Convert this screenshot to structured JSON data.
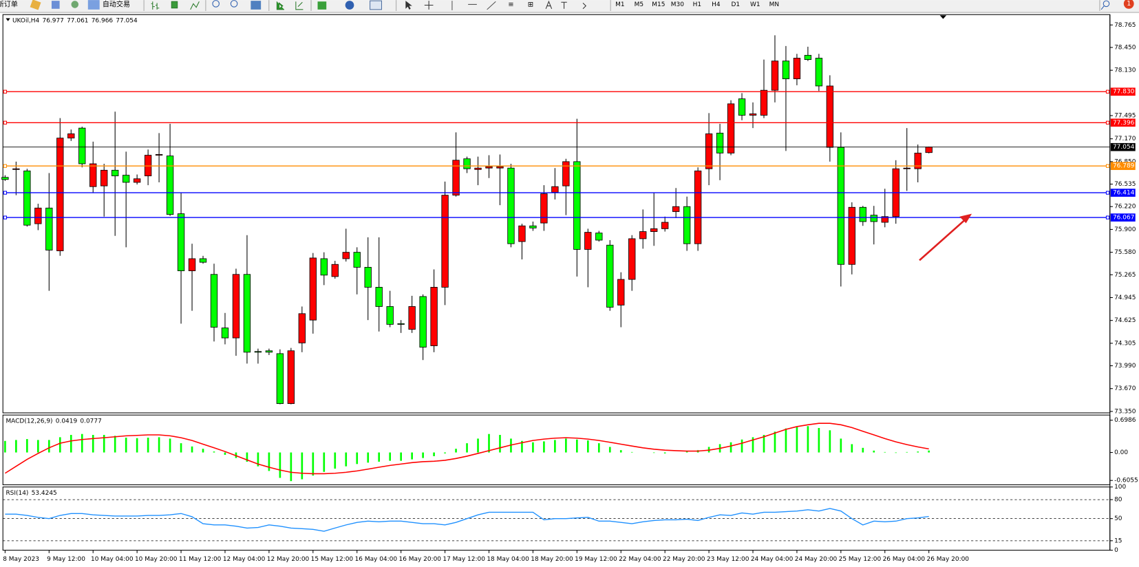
{
  "toolbar": {
    "new_order": "新订单",
    "auto_trading": "自动交易",
    "timeframes": [
      "M1",
      "M5",
      "M15",
      "M30",
      "H1",
      "H4",
      "D1",
      "W1",
      "MN"
    ],
    "notification_count": 1
  },
  "chart_data": [
    {
      "type": "candlestick",
      "title": "UKOil,H4",
      "up_color": "#ff0000",
      "down_color": "#00ff00",
      "categories": [
        "8 May 2023",
        null,
        null,
        null,
        "9 May 12:00",
        null,
        null,
        null,
        "10 May 04:00",
        null,
        null,
        null,
        "10 May 20:00",
        null,
        null,
        null,
        "11 May 12:00",
        null,
        null,
        null,
        "12 May 04:00",
        null,
        null,
        null,
        "12 May 20:00",
        null,
        null,
        null,
        "15 May 12:00",
        null,
        null,
        null,
        "16 May 04:00",
        null,
        null,
        null,
        "16 May 20:00",
        null,
        null,
        null,
        "17 May 12:00",
        null,
        null,
        null,
        "18 May 04:00",
        null,
        null,
        null,
        "18 May 20:00",
        null,
        null,
        null,
        "19 May 12:00",
        null,
        null,
        null,
        "22 May 04:00",
        null,
        null,
        null,
        "22 May 20:00",
        null,
        null,
        null,
        "23 May 12:00",
        null,
        null,
        null,
        "24 May 04:00",
        null,
        null,
        null,
        "24 May 20:00",
        null,
        null,
        null,
        "25 May 12:00",
        null,
        null,
        null,
        "26 May 04:00",
        null,
        null,
        null,
        "26 May 20:00"
      ],
      "ohlc": [
        [
          76.63,
          76.66,
          76.58,
          76.6
        ],
        [
          76.74,
          76.85,
          76.38,
          76.75
        ],
        [
          76.72,
          76.75,
          75.94,
          75.96
        ],
        [
          75.98,
          76.26,
          75.89,
          76.2
        ],
        [
          76.2,
          76.69,
          75.04,
          75.61
        ],
        [
          75.6,
          77.46,
          75.53,
          77.18
        ],
        [
          77.18,
          77.3,
          77.14,
          77.24
        ],
        [
          77.32,
          77.34,
          76.77,
          76.82
        ],
        [
          76.5,
          77.13,
          76.41,
          76.82
        ],
        [
          76.51,
          76.82,
          76.08,
          76.73
        ],
        [
          76.73,
          77.55,
          75.81,
          76.65
        ],
        [
          76.66,
          76.99,
          75.65,
          76.56
        ],
        [
          76.56,
          76.67,
          76.53,
          76.61
        ],
        [
          76.65,
          77.02,
          76.52,
          76.94
        ],
        [
          76.94,
          77.25,
          76.56,
          76.95
        ],
        [
          76.93,
          77.38,
          76.09,
          76.11
        ],
        [
          76.12,
          76.41,
          74.58,
          75.32
        ],
        [
          75.32,
          75.7,
          74.76,
          75.49
        ],
        [
          75.49,
          75.53,
          75.42,
          75.44
        ],
        [
          75.27,
          75.42,
          74.33,
          74.53
        ],
        [
          74.52,
          74.73,
          74.29,
          74.38
        ],
        [
          74.38,
          75.35,
          74.13,
          75.27
        ],
        [
          75.27,
          75.82,
          74.02,
          74.18
        ],
        [
          74.19,
          74.23,
          74.02,
          74.18
        ],
        [
          74.2,
          74.23,
          74.14,
          74.18
        ],
        [
          74.16,
          74.22,
          73.45,
          73.46
        ],
        [
          73.46,
          74.24,
          73.45,
          74.2
        ],
        [
          74.31,
          74.82,
          74.18,
          74.72
        ],
        [
          74.63,
          75.57,
          74.44,
          75.5
        ],
        [
          75.49,
          75.58,
          75.12,
          75.26
        ],
        [
          75.24,
          75.46,
          75.21,
          75.41
        ],
        [
          75.49,
          75.91,
          75.45,
          75.58
        ],
        [
          75.58,
          75.65,
          74.99,
          75.37
        ],
        [
          75.37,
          75.79,
          74.63,
          75.09
        ],
        [
          75.09,
          75.79,
          74.47,
          74.82
        ],
        [
          74.82,
          75.04,
          74.53,
          74.57
        ],
        [
          74.58,
          74.63,
          74.45,
          74.57
        ],
        [
          74.5,
          74.97,
          74.45,
          74.82
        ],
        [
          74.96,
          74.99,
          74.07,
          74.25
        ],
        [
          74.27,
          75.34,
          74.18,
          75.09
        ],
        [
          75.09,
          76.57,
          74.84,
          76.38
        ],
        [
          76.38,
          77.26,
          76.36,
          76.87
        ],
        [
          76.89,
          76.92,
          76.69,
          76.75
        ],
        [
          76.74,
          76.92,
          76.52,
          76.76
        ],
        [
          76.76,
          76.94,
          76.62,
          76.78
        ],
        [
          76.76,
          76.95,
          76.24,
          76.78
        ],
        [
          76.76,
          76.82,
          75.65,
          75.7
        ],
        [
          75.73,
          75.98,
          75.48,
          75.95
        ],
        [
          75.95,
          76.01,
          75.88,
          75.92
        ],
        [
          75.99,
          76.52,
          75.88,
          76.4
        ],
        [
          76.42,
          76.76,
          76.32,
          76.5
        ],
        [
          76.51,
          76.89,
          76.1,
          76.85
        ],
        [
          76.85,
          77.45,
          75.24,
          75.62
        ],
        [
          75.62,
          75.91,
          75.09,
          75.86
        ],
        [
          75.85,
          75.88,
          75.73,
          75.75
        ],
        [
          75.68,
          75.75,
          74.76,
          74.81
        ],
        [
          74.84,
          75.3,
          74.53,
          75.2
        ],
        [
          75.2,
          75.82,
          75.04,
          75.77
        ],
        [
          75.77,
          76.18,
          75.63,
          75.87
        ],
        [
          75.87,
          76.42,
          75.67,
          75.91
        ],
        [
          75.91,
          76.08,
          75.87,
          76
        ],
        [
          76.15,
          76.48,
          76.06,
          76.22
        ],
        [
          76.22,
          76.36,
          75.6,
          75.7
        ],
        [
          75.7,
          76.77,
          75.6,
          76.72
        ],
        [
          76.75,
          77.53,
          76.52,
          77.24
        ],
        [
          77.25,
          77.38,
          76.59,
          76.97
        ],
        [
          76.97,
          77.71,
          76.94,
          77.66
        ],
        [
          77.73,
          77.81,
          77.43,
          77.5
        ],
        [
          77.5,
          77.68,
          77.32,
          77.52
        ],
        [
          77.5,
          78.28,
          77.46,
          77.85
        ],
        [
          77.85,
          78.62,
          77.68,
          78.26
        ],
        [
          78.26,
          78.47,
          77,
          78.01
        ],
        [
          78.01,
          78.36,
          77.92,
          78.3
        ],
        [
          78.34,
          78.46,
          78.26,
          78.28
        ],
        [
          78.3,
          78.36,
          77.84,
          77.91
        ],
        [
          77.05,
          78.06,
          76.85,
          77.91
        ],
        [
          77.05,
          77.26,
          75.1,
          75.41
        ],
        [
          75.41,
          76.28,
          75.27,
          76.21
        ],
        [
          76.21,
          76.23,
          75.95,
          76.01
        ],
        [
          76.1,
          76.23,
          75.69,
          76.01
        ],
        [
          76,
          76.47,
          75.93,
          76.08
        ],
        [
          76.08,
          76.87,
          75.98,
          76.75
        ],
        [
          76.75,
          77.32,
          76.44,
          76.76
        ],
        [
          76.75,
          77.09,
          76.56,
          76.97
        ],
        [
          76.977,
          77.061,
          76.966,
          77.054
        ]
      ],
      "ylim": [
        73.33,
        78.91
      ],
      "yticks": [
        78.765,
        {
          "value": 78.45,
          "label": "78.450"
        },
        {
          "value": 78.13,
          "label": "78.130"
        },
        77.495,
        {
          "value": 77.17,
          "label": "77.170"
        },
        {
          "value": 76.85,
          "label": "76.850"
        },
        76.535,
        {
          "value": 76.22,
          "label": "76.220"
        },
        {
          "value": 75.9,
          "label": "75.900"
        },
        {
          "value": 75.58,
          "label": "75.580"
        },
        75.265,
        74.945,
        74.625,
        74.305,
        {
          "value": 73.99,
          "label": "73.990"
        },
        {
          "value": 73.67,
          "label": "73.670"
        },
        {
          "value": 73.35,
          "label": "73.350"
        }
      ],
      "levels": [
        {
          "value": 77.83,
          "label": "77.830",
          "color": "#ff0000"
        },
        {
          "value": 77.396,
          "label": "77.396",
          "color": "#ff0000"
        },
        {
          "value": 76.789,
          "label": "76.789",
          "color": "#ff8c00"
        },
        {
          "value": 76.414,
          "label": "76.414",
          "color": "#0000ff"
        },
        {
          "value": 76.067,
          "label": "76.067",
          "color": "#0000ff"
        }
      ]
    },
    {
      "type": "macd",
      "title": "MACD(12,26,9)",
      "color": "#00ff00",
      "signal_color": "#ff0000",
      "values": [
        0.25,
        0.27,
        0.29,
        0.27,
        0.27,
        0.33,
        0.38,
        0.4,
        0.38,
        0.38,
        0.36,
        0.32,
        0.31,
        0.32,
        0.33,
        0.3,
        0.2,
        0.13,
        0.08,
        0.02,
        -0.05,
        -0.12,
        -0.2,
        -0.3,
        -0.4,
        -0.55,
        -0.62,
        -0.58,
        -0.5,
        -0.42,
        -0.35,
        -0.3,
        -0.25,
        -0.22,
        -0.2,
        -0.18,
        -0.18,
        -0.15,
        -0.12,
        -0.08,
        -0.02,
        0.08,
        0.2,
        0.3,
        0.4,
        0.38,
        0.3,
        0.25,
        0.22,
        0.24,
        0.27,
        0.3,
        0.28,
        0.26,
        0.2,
        0.12,
        0.05,
        0.01,
        0,
        -0.01,
        -0.02,
        0,
        0.02,
        0.05,
        0.12,
        0.18,
        0.22,
        0.28,
        0.33,
        0.38,
        0.45,
        0.52,
        0.55,
        0.57,
        0.53,
        0.48,
        0.3,
        0.18,
        0.1,
        0.04,
        0.01,
        -0.01,
        0.01,
        0.02,
        0.0419
      ],
      "signal": [
        -0.45,
        -0.3,
        -0.15,
        -0.02,
        0.1,
        0.2,
        0.25,
        0.28,
        0.3,
        0.32,
        0.34,
        0.36,
        0.37,
        0.38,
        0.38,
        0.36,
        0.32,
        0.26,
        0.18,
        0.1,
        0.02,
        -0.07,
        -0.16,
        -0.25,
        -0.32,
        -0.38,
        -0.43,
        -0.45,
        -0.46,
        -0.46,
        -0.45,
        -0.43,
        -0.4,
        -0.36,
        -0.32,
        -0.28,
        -0.25,
        -0.22,
        -0.2,
        -0.19,
        -0.17,
        -0.13,
        -0.08,
        -0.02,
        0.04,
        0.1,
        0.16,
        0.21,
        0.26,
        0.29,
        0.31,
        0.32,
        0.31,
        0.29,
        0.26,
        0.22,
        0.18,
        0.14,
        0.1,
        0.07,
        0.05,
        0.04,
        0.03,
        0.03,
        0.05,
        0.09,
        0.14,
        0.2,
        0.27,
        0.34,
        0.42,
        0.5,
        0.56,
        0.6,
        0.63,
        0.63,
        0.6,
        0.54,
        0.46,
        0.38,
        0.3,
        0.23,
        0.17,
        0.12,
        0.0777
      ],
      "ylim": [
        -0.7,
        0.81
      ],
      "yticks": [
        0.6986,
        {
          "value": 0,
          "label": "0.00"
        },
        -0.6055
      ]
    },
    {
      "type": "rsi",
      "title": "RSI(14)",
      "color": "#1e90ff",
      "values": [
        57,
        57,
        55,
        52,
        50,
        55,
        58,
        58,
        56,
        55,
        54,
        54,
        54,
        55,
        55,
        56,
        58,
        53,
        42,
        40,
        40,
        38,
        35,
        36,
        40,
        38,
        35,
        34,
        33,
        30,
        35,
        40,
        44,
        46,
        45,
        46,
        46,
        44,
        42,
        42,
        40,
        44,
        50,
        56,
        60,
        60,
        60,
        60,
        60,
        48,
        50,
        50,
        51,
        52,
        46,
        46,
        44,
        42,
        45,
        47,
        48,
        48,
        49,
        47,
        52,
        56,
        55,
        59,
        57,
        60,
        60,
        61,
        62,
        64,
        62,
        66,
        62,
        50,
        40,
        46,
        45,
        46,
        50,
        51,
        53.4245
      ],
      "ylim": [
        0,
        100
      ],
      "yticks": [
        100,
        80,
        50,
        15,
        0
      ]
    }
  ]
}
